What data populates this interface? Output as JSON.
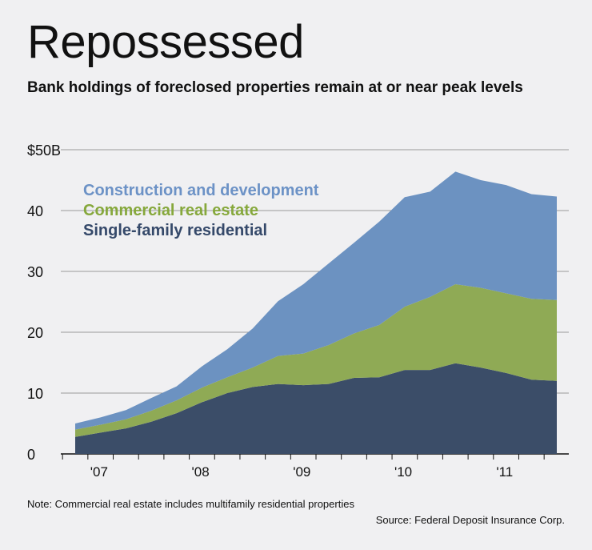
{
  "header": {
    "title": "Repossessed",
    "subtitle": "Bank holdings of foreclosed properties remain at or near peak levels"
  },
  "footer": {
    "note": "Note: Commercial real estate includes multifamily residential properties",
    "source": "Source: Federal Deposit Insurance Corp."
  },
  "chart_data": {
    "type": "area",
    "stacked": true,
    "title": "Repossessed",
    "subtitle": "Bank holdings of foreclosed properties remain at or near peak levels",
    "x": [
      "2006-Q4",
      "2007-Q1",
      "2007-Q2",
      "2007-Q3",
      "2007-Q4",
      "2008-Q1",
      "2008-Q2",
      "2008-Q3",
      "2008-Q4",
      "2009-Q1",
      "2009-Q2",
      "2009-Q3",
      "2009-Q4",
      "2010-Q1",
      "2010-Q2",
      "2010-Q3",
      "2010-Q4",
      "2011-Q1",
      "2011-Q2",
      "2011-Q3"
    ],
    "x_tick_labels": [
      "'07",
      "'08",
      "'09",
      "'10",
      "'11"
    ],
    "y_tick_labels": [
      "$50B",
      "40",
      "30",
      "20",
      "10",
      "0"
    ],
    "ylim": [
      0,
      50
    ],
    "xlabel": "",
    "ylabel": "",
    "legend_position": "top-left",
    "series": [
      {
        "name": "Single-family residential",
        "color": "#3b4d68",
        "values": [
          2.8,
          3.5,
          4.2,
          5.3,
          6.7,
          8.5,
          10.0,
          11.0,
          11.5,
          11.3,
          11.5,
          12.5,
          12.6,
          13.8,
          13.8,
          14.9,
          14.2,
          13.3,
          12.2,
          12.0
        ]
      },
      {
        "name": "Commercial real estate",
        "color": "#8faa55",
        "values": [
          1.2,
          1.3,
          1.5,
          1.8,
          2.1,
          2.4,
          2.6,
          3.2,
          4.6,
          5.2,
          6.4,
          7.3,
          8.6,
          10.4,
          12.0,
          13.0,
          13.1,
          13.1,
          13.3,
          13.3
        ]
      },
      {
        "name": "Construction and development",
        "color": "#6c92c1",
        "values": [
          1.0,
          1.2,
          1.5,
          2.1,
          2.3,
          3.5,
          4.6,
          6.4,
          9.0,
          11.4,
          13.4,
          14.9,
          17.0,
          18.0,
          17.3,
          18.5,
          17.7,
          17.8,
          17.2,
          17.0
        ]
      }
    ]
  }
}
